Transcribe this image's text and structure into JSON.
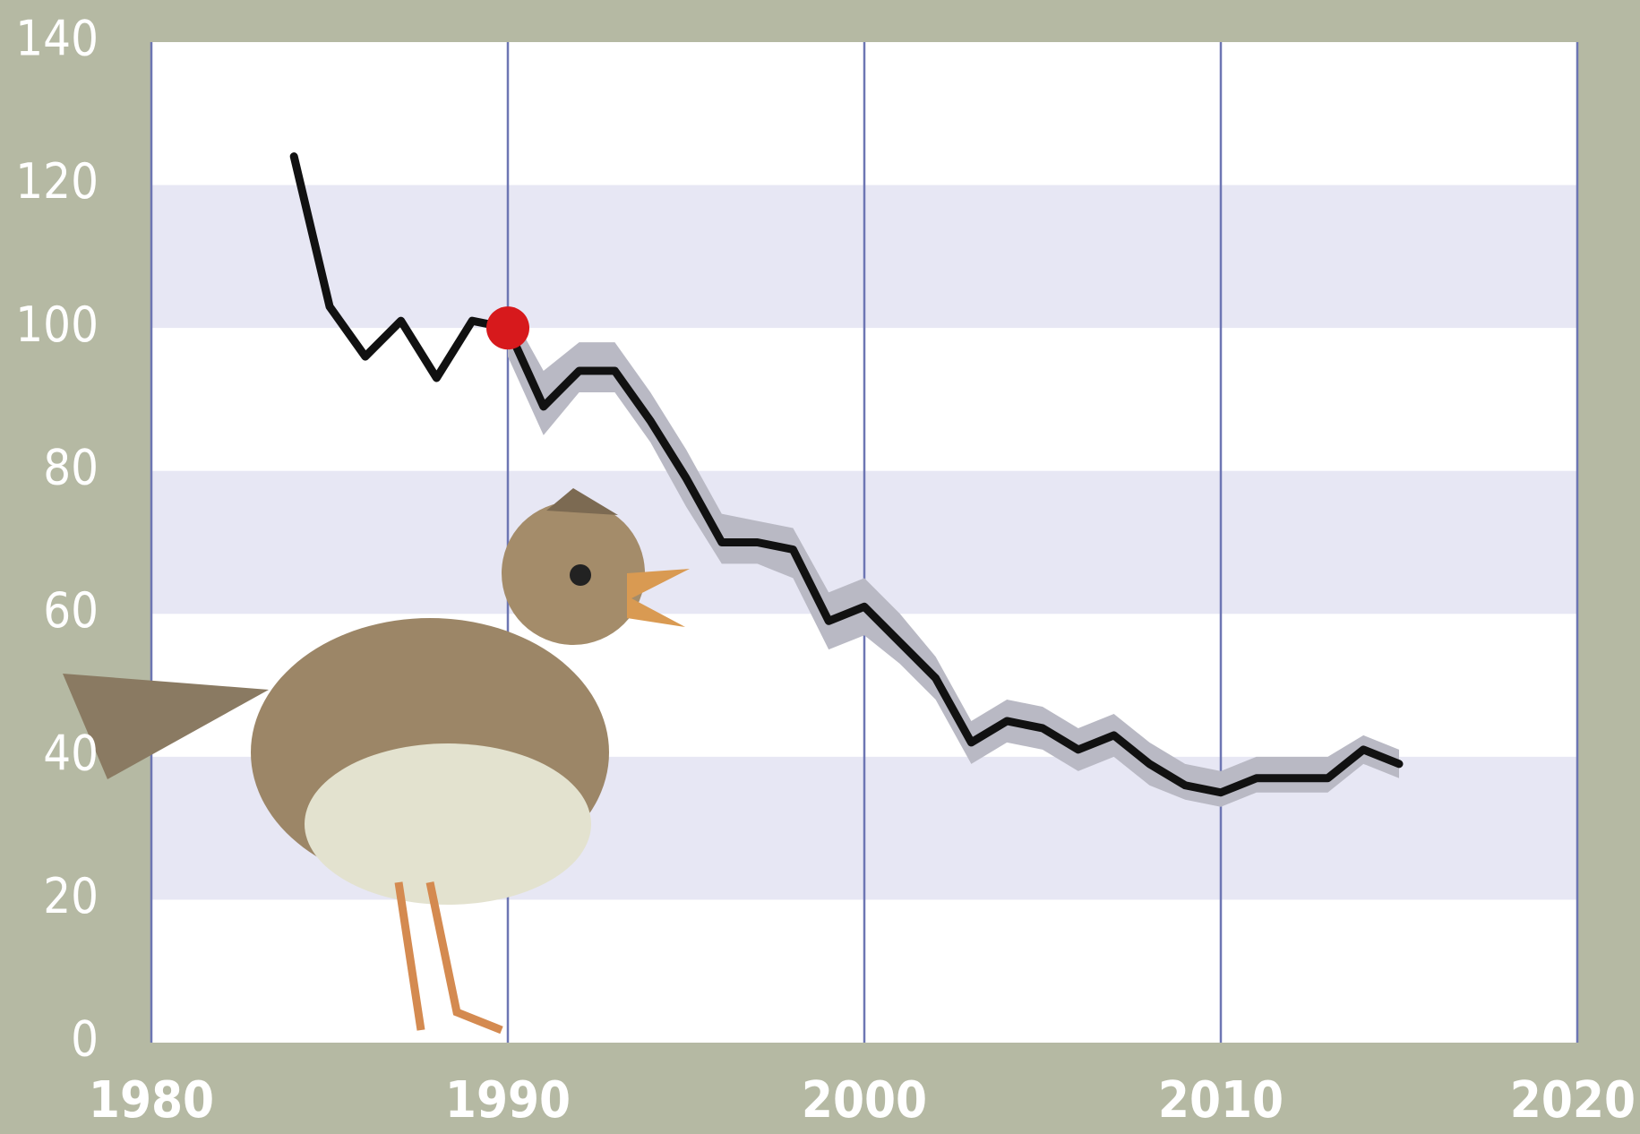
{
  "chart_data": {
    "type": "line",
    "x": [
      1984,
      1985,
      1986,
      1987,
      1988,
      1989,
      1990,
      1991,
      1992,
      1993,
      1994,
      1995,
      1996,
      1997,
      1998,
      1999,
      2000,
      2001,
      2002,
      2003,
      2004,
      2005,
      2006,
      2007,
      2008,
      2009,
      2010,
      2011,
      2012,
      2013,
      2014,
      2015
    ],
    "series": [
      {
        "color": "#111111",
        "values": [
          124,
          103,
          96,
          101,
          93,
          101,
          100,
          89,
          94,
          94,
          87,
          79,
          70,
          70,
          69,
          59,
          61,
          56,
          51,
          42,
          45,
          44,
          41,
          43,
          39,
          36,
          35,
          37,
          37,
          37,
          41,
          39
        ]
      }
    ],
    "band": {
      "color": "#b9b9c4",
      "x": [
        1990,
        1991,
        1992,
        1993,
        1994,
        1995,
        1996,
        1997,
        1998,
        1999,
        2000,
        2001,
        2002,
        2003,
        2004,
        2005,
        2006,
        2007,
        2008,
        2009,
        2010,
        2011,
        2012,
        2013,
        2014,
        2015
      ],
      "lower": [
        96,
        85,
        91,
        91,
        84,
        75,
        67,
        67,
        65,
        55,
        57,
        53,
        48,
        39,
        42,
        41,
        38,
        40,
        36,
        34,
        33,
        35,
        35,
        35,
        39,
        37
      ],
      "upper": [
        103,
        94,
        98,
        98,
        91,
        83,
        74,
        73,
        72,
        63,
        65,
        60,
        54,
        45,
        48,
        47,
        44,
        46,
        42,
        39,
        38,
        40,
        40,
        40,
        43,
        41
      ]
    },
    "highlight_x": 1990,
    "highlight_color": "#d7191c",
    "xlim": [
      1980,
      2020
    ],
    "xticks": [
      1980,
      1990,
      2000,
      2010,
      2020
    ],
    "ylim": [
      0,
      140
    ],
    "yticks": [
      0,
      20,
      40,
      60,
      80,
      100,
      120,
      140
    ],
    "grid": true
  }
}
